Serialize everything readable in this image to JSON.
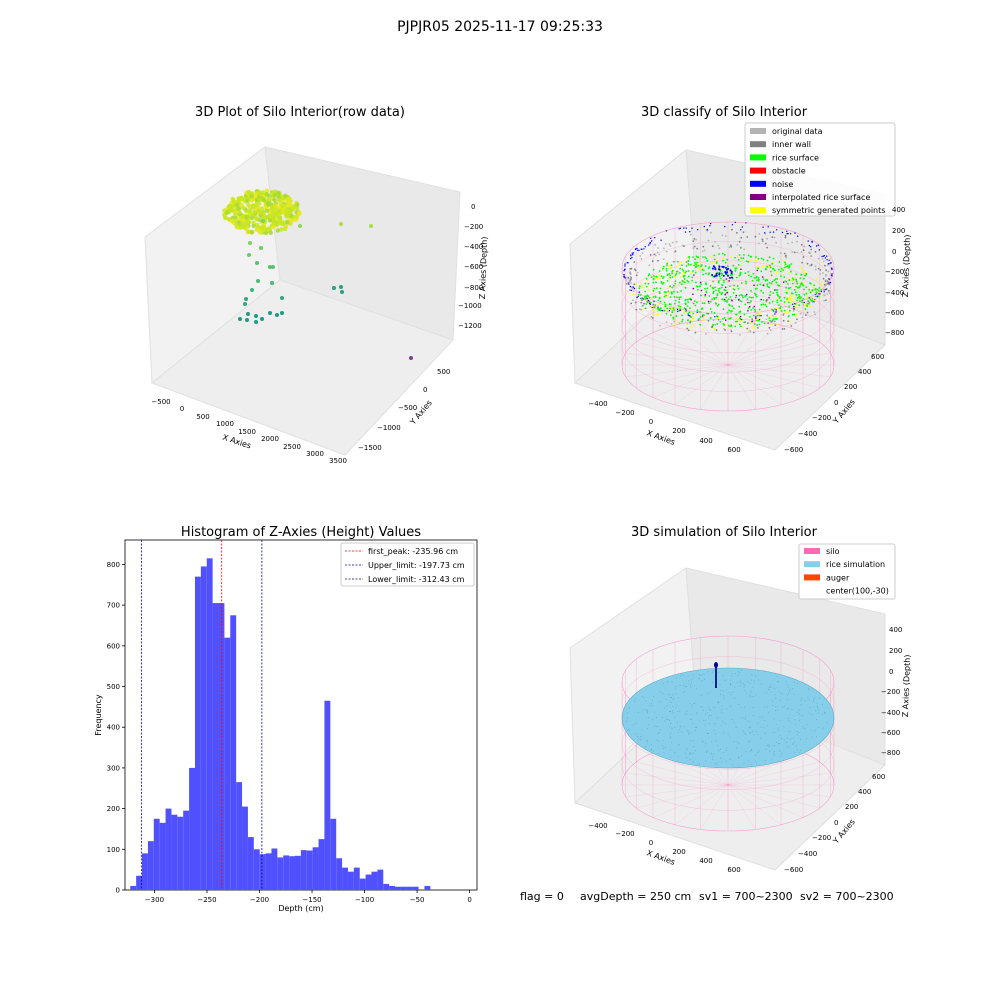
{
  "figure": {
    "suptitle": "PJPJR05 2025-11-17 09:25:33",
    "footer": {
      "flag": "flag = 0",
      "avg_depth": "avgDepth = 250 cm",
      "sv1": "sv1 = 700~2300",
      "sv2": "sv2 = 700~2300"
    }
  },
  "colors": {
    "original": "#b4b4b4",
    "inner_wall": "#808080",
    "rice_surface": "#00ff00",
    "obstacle": "#ff0000",
    "noise": "#0000ff",
    "interpolated": "#800080",
    "symmetric": "#ffff00",
    "silo": "#ff69b4",
    "rice_sim": "#87ceeb",
    "auger": "#ff4500",
    "hist_bar": "#5050ff"
  },
  "panels": {
    "raw": {
      "title": "3D Plot of Silo Interior(row data)",
      "xlabel": "X Axies",
      "ylabel": "Y Axies",
      "zlabel": "Z Axies (Depth)",
      "xticks": [
        "−500",
        "0",
        "500",
        "1000",
        "1500",
        "2000",
        "2500",
        "3000",
        "3500"
      ],
      "yticks": [
        "500",
        "0",
        "−500",
        "−1000",
        "−1500"
      ],
      "zticks": [
        "0",
        "−200",
        "−400",
        "−600",
        "−800",
        "−1000",
        "−1200"
      ]
    },
    "classify": {
      "title": "3D classify of Silo Interior",
      "xlabel": "X Axies",
      "ylabel": "Y Axies",
      "zlabel": "Z Axies (Depth)",
      "xticks": [
        "−400",
        "−200",
        "0",
        "200",
        "400",
        "600"
      ],
      "yticks": [
        "600",
        "400",
        "200",
        "0",
        "−200",
        "−400",
        "−600"
      ],
      "zticks": [
        "400",
        "200",
        "0",
        "−200",
        "−400",
        "−600",
        "−800"
      ],
      "legend": [
        {
          "label": "original data",
          "color": "#b4b4b4"
        },
        {
          "label": "inner wall",
          "color": "#808080"
        },
        {
          "label": "rice surface",
          "color": "#00ff00"
        },
        {
          "label": "obstacle",
          "color": "#ff0000"
        },
        {
          "label": "noise",
          "color": "#0000ff"
        },
        {
          "label": "interpolated rice surface",
          "color": "#800080"
        },
        {
          "label": "symmetric generated points",
          "color": "#ffff00"
        }
      ]
    },
    "simulation": {
      "title": "3D simulation of Silo Interior",
      "xlabel": "X Axies",
      "ylabel": "Y Axies",
      "zlabel": "Z Axies (Depth)",
      "xticks": [
        "−400",
        "−200",
        "0",
        "200",
        "400",
        "600"
      ],
      "yticks": [
        "600",
        "400",
        "200",
        "0",
        "−200",
        "−400",
        "−600"
      ],
      "zticks": [
        "400",
        "200",
        "0",
        "−200",
        "−400",
        "−600",
        "−800"
      ],
      "legend": [
        {
          "label": "silo",
          "color": "#ff69b4"
        },
        {
          "label": "rice simulation",
          "color": "#87ceeb"
        },
        {
          "label": "auger",
          "color": "#ff4500"
        },
        {
          "label": "center(100,-30)",
          "color": ""
        }
      ]
    }
  },
  "chart_data": {
    "type": "bar",
    "title": "Histogram of Z-Axies (Height) Values",
    "xlabel": "Depth (cm)",
    "ylabel": "Frequency",
    "xlim": [
      -328,
      7
    ],
    "ylim": [
      0,
      860
    ],
    "xticks": [
      -300,
      -250,
      -200,
      -150,
      -100,
      -50,
      0
    ],
    "yticks": [
      0,
      100,
      200,
      300,
      400,
      500,
      600,
      700,
      800
    ],
    "bin_start": -323,
    "bin_width": 5.6,
    "values": [
      10,
      35,
      90,
      120,
      175,
      165,
      200,
      185,
      180,
      195,
      300,
      770,
      795,
      815,
      705,
      705,
      620,
      675,
      265,
      205,
      130,
      100,
      88,
      90,
      102,
      80,
      85,
      83,
      84,
      98,
      97,
      105,
      125,
      465,
      175,
      78,
      55,
      45,
      55,
      28,
      38,
      45,
      50,
      15,
      10,
      8,
      8,
      8,
      8,
      0,
      10
    ],
    "reference_lines": [
      {
        "label": "first_peak: -235.96 cm",
        "x": -235.96,
        "color": "#ff0000"
      },
      {
        "label": "Upper_limit: -197.73 cm",
        "x": -197.73,
        "color": "#0000b0"
      },
      {
        "label": "Lower_limit: -312.43 cm",
        "x": -312.43,
        "color": "#0000b0"
      }
    ]
  }
}
